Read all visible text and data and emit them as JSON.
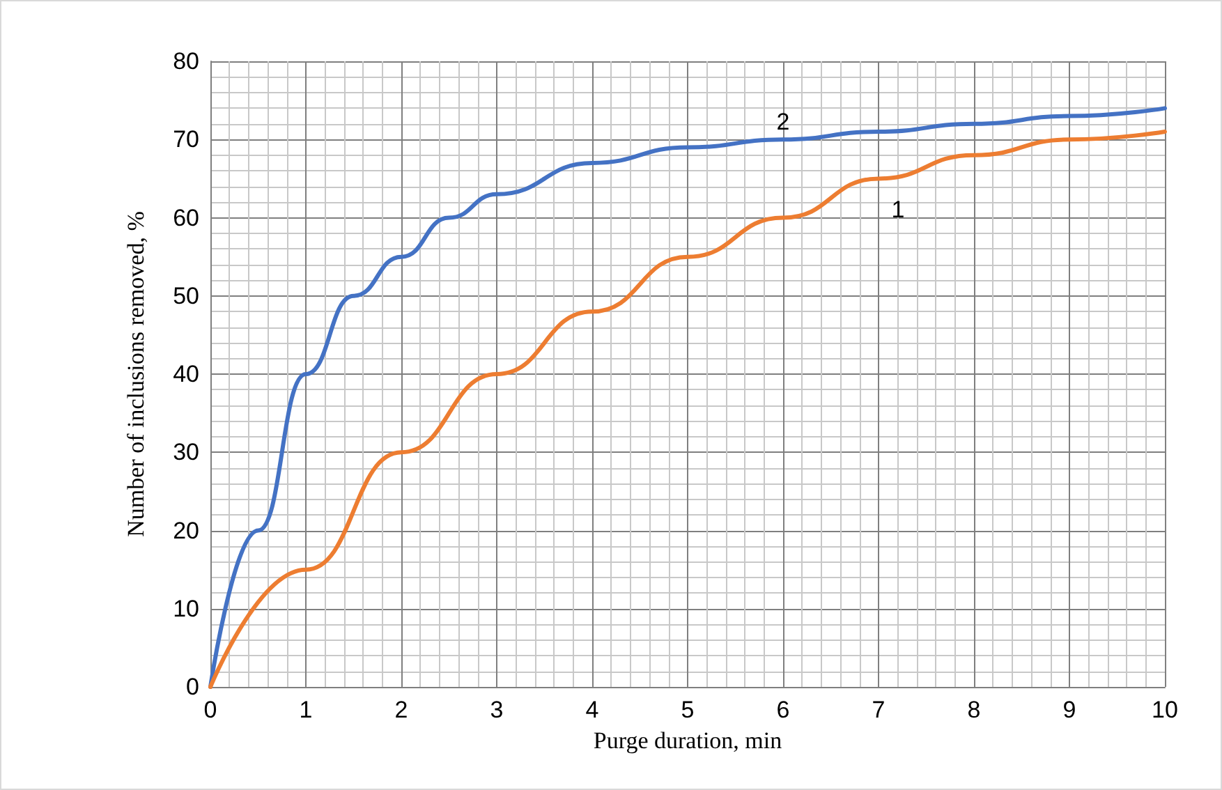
{
  "chart_data": {
    "type": "line",
    "xlabel": "Purge duration, min",
    "ylabel": "Number of inclusions removed, %",
    "xlim": [
      0,
      10
    ],
    "xticks": [
      0,
      1,
      2,
      3,
      4,
      5,
      6,
      7,
      8,
      9,
      10
    ],
    "ylim": [
      0,
      80
    ],
    "yticks": [
      0,
      10,
      20,
      30,
      40,
      50,
      60,
      70,
      80
    ],
    "grid": true,
    "legend": false,
    "marker": "none",
    "line_style": "solid",
    "series": [
      {
        "name": "2",
        "color": "#4472c4",
        "x": [
          0,
          0.5,
          1,
          1.5,
          2,
          2.5,
          3,
          4,
          5,
          6,
          7,
          8,
          9,
          10
        ],
        "values": [
          0,
          20,
          40,
          50,
          55,
          60,
          63,
          67,
          69,
          70,
          71,
          72,
          73,
          74
        ]
      },
      {
        "name": "1",
        "color": "#ed7d31",
        "x": [
          0,
          1,
          2,
          3,
          4,
          5,
          6,
          7,
          8,
          9,
          10
        ],
        "values": [
          0,
          15,
          30,
          40,
          48,
          55,
          60,
          65,
          68,
          70,
          71
        ]
      }
    ]
  }
}
